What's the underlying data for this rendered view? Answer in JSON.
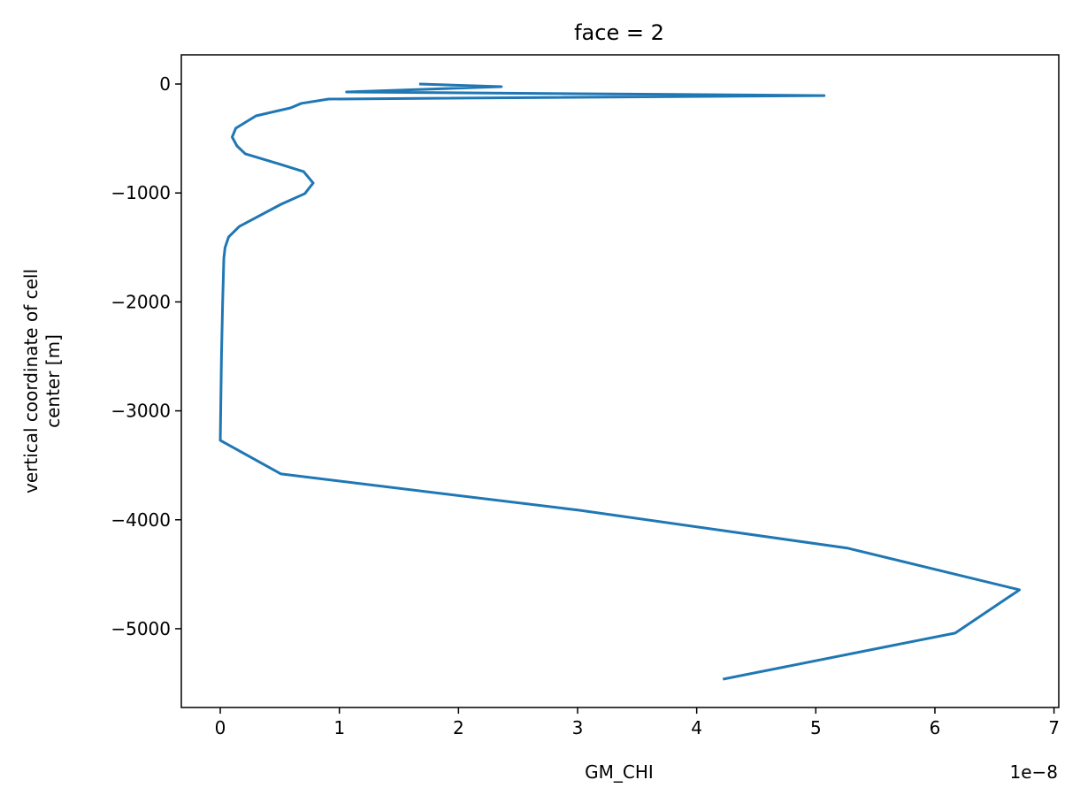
{
  "chart_data": {
    "type": "line",
    "title": "face = 2",
    "x_label": "GM_CHI",
    "x_offset_label": "1e−8",
    "y_label": [
      "vertical coordinate of cell",
      "center [m]"
    ],
    "color": "#1f77b4",
    "x": [
      1.67,
      2.36,
      1.06,
      5.07,
      0.91,
      0.68,
      0.59,
      0.3,
      0.13,
      0.1,
      0.14,
      0.21,
      0.51,
      0.7,
      0.78,
      0.71,
      0.51,
      0.16,
      0.07,
      0.04,
      0.03,
      0.02,
      0.01,
      0.0,
      0.51,
      3.01,
      5.27,
      6.71,
      6.17,
      4.22
    ],
    "values": [
      0,
      -24,
      -73,
      -106,
      -138,
      -178,
      -219,
      -292,
      -406,
      -487,
      -568,
      -641,
      -739,
      -804,
      -909,
      -1006,
      -1104,
      -1307,
      -1404,
      -1502,
      -1599,
      -1997,
      -2500,
      -3271,
      -3579,
      -3912,
      -4261,
      -4643,
      -5040,
      -5463
    ],
    "xlim": [
      -0.327,
      7.04
    ],
    "xticks": [
      0,
      1,
      2,
      3,
      4,
      5,
      6,
      7
    ],
    "ylim": [
      -5723,
      268
    ],
    "yticks": [
      0,
      {
        "value": -1000,
        "label": "−1000"
      },
      {
        "value": -2000,
        "label": "−2000"
      },
      {
        "value": -3000,
        "label": "−3000"
      },
      {
        "value": -4000,
        "label": "−4000"
      },
      {
        "value": -5000,
        "label": "−5000"
      }
    ]
  }
}
